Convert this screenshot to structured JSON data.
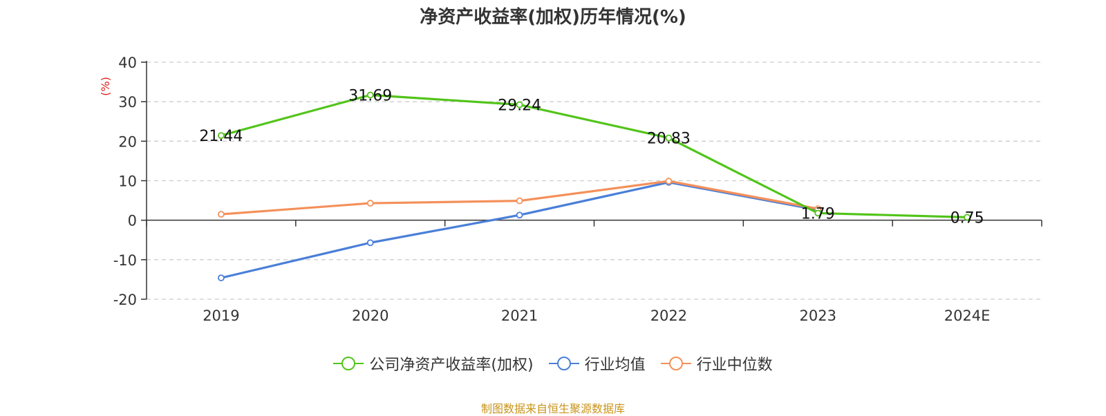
{
  "source_note": "制图数据来自恒生聚源数据库",
  "chart_data": {
    "type": "line",
    "title": "净资产收益率(加权)历年情况(%)",
    "ylabel": "(%)",
    "xlabel": "",
    "categories": [
      "2019",
      "2020",
      "2021",
      "2022",
      "2023",
      "2024E"
    ],
    "ylim": [
      -20,
      40
    ],
    "yticks": [
      40,
      30,
      20,
      10,
      0,
      -10,
      -20
    ],
    "grid": true,
    "legend_position": "bottom",
    "series": [
      {
        "name": "公司净资产收益率(加权)",
        "color": "#52c41a",
        "values": [
          21.44,
          31.69,
          29.24,
          20.83,
          1.79,
          0.75
        ],
        "labels": [
          "21.44",
          "31.69",
          "29.24",
          "20.83",
          "1.79",
          "0.75"
        ]
      },
      {
        "name": "行业均值",
        "color": "#4a7fd8",
        "values": [
          -14.6,
          -5.7,
          1.3,
          9.6,
          2.6,
          null
        ]
      },
      {
        "name": "行业中位数",
        "color": "#f4905a",
        "values": [
          1.5,
          4.3,
          4.9,
          9.9,
          2.9,
          null
        ]
      }
    ]
  }
}
